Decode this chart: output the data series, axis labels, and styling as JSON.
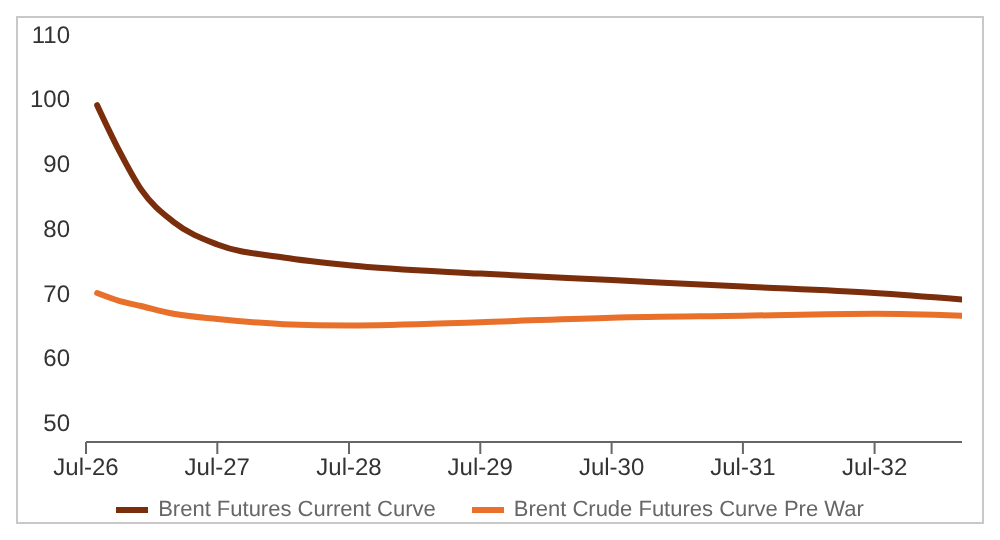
{
  "chart_data": {
    "type": "line",
    "x": [
      "2026-08",
      "2026-10",
      "2026-12",
      "2027-03",
      "2027-07",
      "2028-01",
      "2028-07",
      "2029-07",
      "2030-07",
      "2031-07",
      "2032-07",
      "2033-03"
    ],
    "series": [
      {
        "name": "Brent Futures Current Curve",
        "color": "#7b2e0c",
        "values": [
          99,
          92,
          86,
          81,
          77.5,
          75.5,
          74.3,
          73,
          72,
          71,
          70,
          69
        ]
      },
      {
        "name": "Brent Crude Futures Curve Pre War",
        "color": "#e8702a",
        "values": [
          70,
          68.8,
          68,
          66.8,
          66,
          65.2,
          65,
          65.5,
          66.2,
          66.5,
          66.8,
          66.5
        ]
      }
    ],
    "xlim": [
      "2026-07",
      "2033-03"
    ],
    "xticks": [
      {
        "value": "2026-07",
        "label": "Jul-26"
      },
      {
        "value": "2027-07",
        "label": "Jul-27"
      },
      {
        "value": "2028-07",
        "label": "Jul-28"
      },
      {
        "value": "2029-07",
        "label": "Jul-29"
      },
      {
        "value": "2030-07",
        "label": "Jul-30"
      },
      {
        "value": "2031-07",
        "label": "Jul-31"
      },
      {
        "value": "2032-07",
        "label": "Jul-32"
      }
    ],
    "ylim": [
      47,
      110
    ],
    "yticks": [
      50,
      60,
      70,
      80,
      90,
      100,
      110
    ],
    "legend": "bottom",
    "marker": "none",
    "line_style": "solid"
  }
}
